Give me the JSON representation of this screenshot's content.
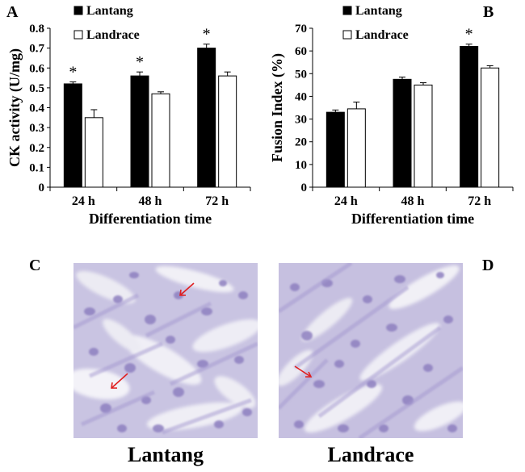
{
  "panels": {
    "a": "A",
    "b": "B",
    "c": "C",
    "d": "D"
  },
  "chart_data": [
    {
      "type": "bar",
      "categories": [
        "24 h",
        "48 h",
        "72 h"
      ],
      "series": [
        {
          "name": "Lantang",
          "values": [
            0.52,
            0.56,
            0.7
          ],
          "errors": [
            0.01,
            0.02,
            0.02
          ],
          "color": "#000000"
        },
        {
          "name": "Landrace",
          "values": [
            0.35,
            0.47,
            0.56
          ],
          "errors": [
            0.04,
            0.01,
            0.02
          ],
          "color": "#ffffff"
        }
      ],
      "significance": [
        "*",
        "*",
        "*"
      ],
      "xlabel": "Differentiation time",
      "ylabel": "CK activity (U/mg)",
      "ylim": [
        0,
        0.8
      ],
      "yticks": [
        "0",
        "0.1",
        "0.2",
        "0.3",
        "0.4",
        "0.5",
        "0.6",
        "0.7",
        "0.8"
      ],
      "legend": "top-left",
      "grid": false
    },
    {
      "type": "bar",
      "categories": [
        "24 h",
        "48 h",
        "72 h"
      ],
      "series": [
        {
          "name": "Lantang",
          "values": [
            33,
            47.5,
            62
          ],
          "errors": [
            1,
            1,
            1
          ],
          "color": "#000000"
        },
        {
          "name": "Landrace",
          "values": [
            34.5,
            45,
            52.5
          ],
          "errors": [
            3,
            1,
            1
          ],
          "color": "#ffffff"
        }
      ],
      "significance": [
        "",
        "",
        "*"
      ],
      "xlabel": "Differentiation time",
      "ylabel": "Fusion Index (%)",
      "ylim": [
        0,
        70
      ],
      "yticks": [
        "0",
        "10",
        "20",
        "30",
        "40",
        "50",
        "60",
        "70"
      ],
      "legend": "top-left",
      "grid": false
    }
  ],
  "micrographs": [
    {
      "caption": "Lantang",
      "stain_color": "#8e80c0"
    },
    {
      "caption": "Landrace",
      "stain_color": "#8e80c0"
    }
  ]
}
